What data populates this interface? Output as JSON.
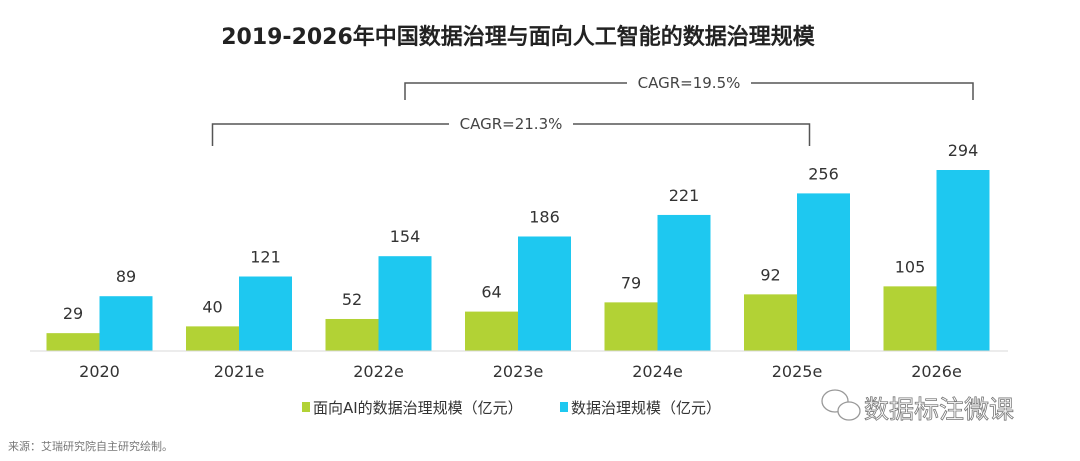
{
  "chart_data": {
    "type": "bar",
    "title": "2019-2026年中国数据治理与面向人工智能的数据治理规模",
    "categories": [
      "2020",
      "2021e",
      "2022e",
      "2023e",
      "2024e",
      "2025e",
      "2026e"
    ],
    "series": [
      {
        "name": "面向AI的数据治理规模（亿元）",
        "color": "#b2d235",
        "values": [
          29,
          40,
          52,
          64,
          79,
          92,
          105
        ]
      },
      {
        "name": "数据治理规模（亿元）",
        "color": "#1ec8f0",
        "values": [
          89,
          121,
          154,
          186,
          221,
          256,
          294
        ]
      }
    ],
    "annotations": [
      {
        "text": "CAGR=19.5%",
        "from": "2022e",
        "to": "2026e"
      },
      {
        "text": "CAGR=21.3%",
        "from": "2021e",
        "to": "2025e"
      }
    ],
    "ylim": [
      0,
      300
    ],
    "grid": false,
    "legend": "bottom"
  },
  "source": "来源：艾瑞研究院自主研究绘制。",
  "watermark": "数据标注微课"
}
